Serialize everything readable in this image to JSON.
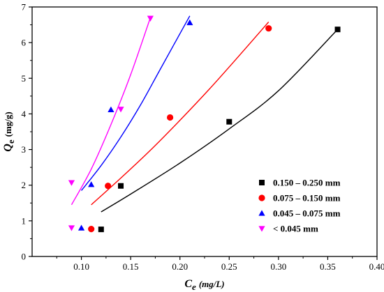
{
  "chart_data": {
    "type": "scatter",
    "xlabel": {
      "symbol": "C",
      "sub": "e",
      "unit": "(mg/L)"
    },
    "ylabel": {
      "symbol": "Q",
      "sub": "e",
      "unit": "(mg/g)"
    },
    "xlim": [
      0.05,
      0.4
    ],
    "ylim": [
      0,
      7
    ],
    "xticks": [
      {
        "v": 0.1,
        "label": "0.10"
      },
      {
        "v": 0.15,
        "label": "0.15"
      },
      {
        "v": 0.2,
        "label": "0.20"
      },
      {
        "v": 0.25,
        "label": "0.25"
      },
      {
        "v": 0.3,
        "label": "0.30"
      },
      {
        "v": 0.35,
        "label": "0.35"
      },
      {
        "v": 0.4,
        "label": "0.40"
      }
    ],
    "yticks": [
      {
        "v": 0,
        "label": "0"
      },
      {
        "v": 1,
        "label": "1"
      },
      {
        "v": 2,
        "label": "2"
      },
      {
        "v": 3,
        "label": "3"
      },
      {
        "v": 4,
        "label": "4"
      },
      {
        "v": 5,
        "label": "5"
      },
      {
        "v": 6,
        "label": "6"
      },
      {
        "v": 7,
        "label": "7"
      }
    ],
    "grid": false,
    "legend_position": "bottom-right",
    "series": [
      {
        "name": "0.150 – 0.250 mm",
        "marker": "square",
        "color": "#000000",
        "points": [
          [
            0.12,
            0.76
          ],
          [
            0.14,
            1.98
          ],
          [
            0.25,
            3.78
          ],
          [
            0.36,
            6.37
          ]
        ],
        "fit": [
          [
            0.12,
            1.25
          ],
          [
            0.15,
            1.75
          ],
          [
            0.2,
            2.62
          ],
          [
            0.25,
            3.58
          ],
          [
            0.3,
            4.65
          ],
          [
            0.36,
            6.37
          ]
        ]
      },
      {
        "name": "0.075 – 0.150 mm",
        "marker": "circle",
        "color": "#ff0000",
        "points": [
          [
            0.11,
            0.77
          ],
          [
            0.127,
            1.98
          ],
          [
            0.19,
            3.9
          ],
          [
            0.29,
            6.4
          ]
        ],
        "fit": [
          [
            0.11,
            1.45
          ],
          [
            0.14,
            2.2
          ],
          [
            0.17,
            2.98
          ],
          [
            0.2,
            3.82
          ],
          [
            0.23,
            4.7
          ],
          [
            0.26,
            5.63
          ],
          [
            0.29,
            6.58
          ]
        ]
      },
      {
        "name": "0.045 – 0.075 mm",
        "marker": "triangle-up",
        "color": "#0000ff",
        "points": [
          [
            0.1,
            0.8
          ],
          [
            0.11,
            2.02
          ],
          [
            0.13,
            4.12
          ],
          [
            0.21,
            6.56
          ]
        ],
        "fit": [
          [
            0.1,
            1.85
          ],
          [
            0.12,
            2.55
          ],
          [
            0.14,
            3.35
          ],
          [
            0.16,
            4.25
          ],
          [
            0.18,
            5.25
          ],
          [
            0.21,
            6.75
          ]
        ]
      },
      {
        "name": "< 0.045 mm",
        "marker": "triangle-down",
        "color": "#ff00ff",
        "points": [
          [
            0.09,
            0.8
          ],
          [
            0.09,
            2.07
          ],
          [
            0.14,
            4.13
          ],
          [
            0.17,
            6.68
          ]
        ],
        "fit": [
          [
            0.09,
            1.45
          ],
          [
            0.11,
            2.45
          ],
          [
            0.13,
            3.7
          ],
          [
            0.15,
            5.1
          ],
          [
            0.17,
            6.7
          ]
        ]
      }
    ]
  }
}
